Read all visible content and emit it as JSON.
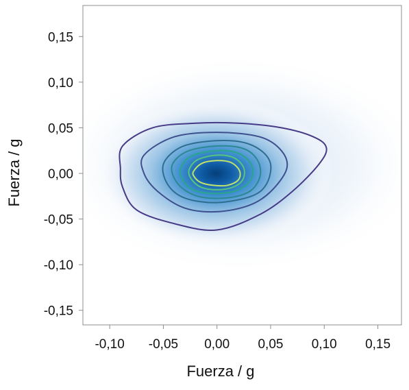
{
  "chart_data": {
    "type": "heatmap",
    "subtype": "2d-density-with-contours",
    "xlabel": "Fuerza / g",
    "ylabel": "Fuerza / g",
    "xlim": [
      -0.125,
      0.172
    ],
    "ylim": [
      -0.166,
      0.184
    ],
    "x_ticks": [
      -0.1,
      -0.05,
      0.0,
      0.05,
      0.1,
      0.15
    ],
    "y_ticks": [
      -0.15,
      -0.1,
      -0.05,
      0.0,
      0.05,
      0.1,
      0.15
    ],
    "x_tick_labels": [
      "-0,10",
      "-0,05",
      "0,00",
      "0,05",
      "0,10",
      "0,15"
    ],
    "y_tick_labels": [
      "-0,15",
      "-0,10",
      "-0,05",
      "0,00",
      "0,05",
      "0,10",
      "0,15"
    ],
    "grid": false,
    "legend": "none",
    "density_peak": [
      0.0,
      0.0
    ],
    "colormap": [
      "#ffffff",
      "#dfeaf6",
      "#9ec6e6",
      "#3e8fce",
      "#0e5aa3",
      "#063f7a"
    ],
    "contours": [
      {
        "level": 1,
        "color": "#463a86",
        "points": [
          [
            -0.088,
            0.03
          ],
          [
            -0.06,
            0.05
          ],
          [
            -0.02,
            0.055
          ],
          [
            0.02,
            0.055
          ],
          [
            0.06,
            0.05
          ],
          [
            0.09,
            0.04
          ],
          [
            0.102,
            0.028
          ],
          [
            0.095,
            0.01
          ],
          [
            0.07,
            -0.02
          ],
          [
            0.04,
            -0.045
          ],
          [
            0.0,
            -0.062
          ],
          [
            -0.04,
            -0.055
          ],
          [
            -0.075,
            -0.04
          ],
          [
            -0.088,
            -0.015
          ],
          [
            -0.09,
            0.005
          ]
        ]
      },
      {
        "level": 2,
        "color": "#3d4f8c",
        "points": [
          [
            -0.068,
            0.02
          ],
          [
            -0.04,
            0.04
          ],
          [
            0.0,
            0.045
          ],
          [
            0.04,
            0.04
          ],
          [
            0.06,
            0.025
          ],
          [
            0.065,
            0.005
          ],
          [
            0.05,
            -0.02
          ],
          [
            0.03,
            -0.035
          ],
          [
            0.0,
            -0.042
          ],
          [
            -0.03,
            -0.038
          ],
          [
            -0.055,
            -0.02
          ],
          [
            -0.068,
            0.0
          ]
        ]
      },
      {
        "level": 3,
        "color": "#2e6d8f",
        "points": [
          [
            -0.05,
            0.01
          ],
          [
            -0.035,
            0.028
          ],
          [
            -0.01,
            0.035
          ],
          [
            0.02,
            0.035
          ],
          [
            0.04,
            0.026
          ],
          [
            0.05,
            0.01
          ],
          [
            0.046,
            -0.012
          ],
          [
            0.032,
            -0.025
          ],
          [
            0.0,
            -0.032
          ],
          [
            -0.03,
            -0.027
          ],
          [
            -0.046,
            -0.012
          ]
        ]
      },
      {
        "level": 4,
        "color": "#2b8892",
        "points": [
          [
            -0.042,
            0.008
          ],
          [
            -0.028,
            0.024
          ],
          [
            0.0,
            0.03
          ],
          [
            0.025,
            0.027
          ],
          [
            0.038,
            0.014
          ],
          [
            0.04,
            -0.004
          ],
          [
            0.03,
            -0.02
          ],
          [
            0.008,
            -0.027
          ],
          [
            -0.018,
            -0.025
          ],
          [
            -0.036,
            -0.012
          ]
        ]
      },
      {
        "level": 5,
        "color": "#2aa58d",
        "points": [
          [
            -0.034,
            0.005
          ],
          [
            -0.024,
            0.019
          ],
          [
            0.0,
            0.025
          ],
          [
            0.02,
            0.022
          ],
          [
            0.032,
            0.01
          ],
          [
            0.032,
            -0.006
          ],
          [
            0.02,
            -0.018
          ],
          [
            0.0,
            -0.022
          ],
          [
            -0.02,
            -0.019
          ],
          [
            -0.031,
            -0.009
          ]
        ]
      },
      {
        "level": 6,
        "color": "#55c481",
        "points": [
          [
            -0.026,
            0.004
          ],
          [
            -0.018,
            0.015
          ],
          [
            0.0,
            0.02
          ],
          [
            0.016,
            0.017
          ],
          [
            0.025,
            0.006
          ],
          [
            0.024,
            -0.007
          ],
          [
            0.015,
            -0.015
          ],
          [
            0.0,
            -0.018
          ],
          [
            -0.015,
            -0.015
          ],
          [
            -0.024,
            -0.006
          ]
        ]
      },
      {
        "level": 7,
        "color": "#bfe36b",
        "points": [
          [
            -0.022,
            0.002
          ],
          [
            -0.014,
            0.011
          ],
          [
            0.0,
            0.014
          ],
          [
            0.013,
            0.012
          ],
          [
            0.021,
            0.003
          ],
          [
            0.02,
            -0.007
          ],
          [
            0.01,
            -0.013
          ],
          [
            -0.004,
            -0.013
          ],
          [
            -0.015,
            -0.01
          ],
          [
            -0.021,
            -0.004
          ]
        ]
      }
    ]
  }
}
